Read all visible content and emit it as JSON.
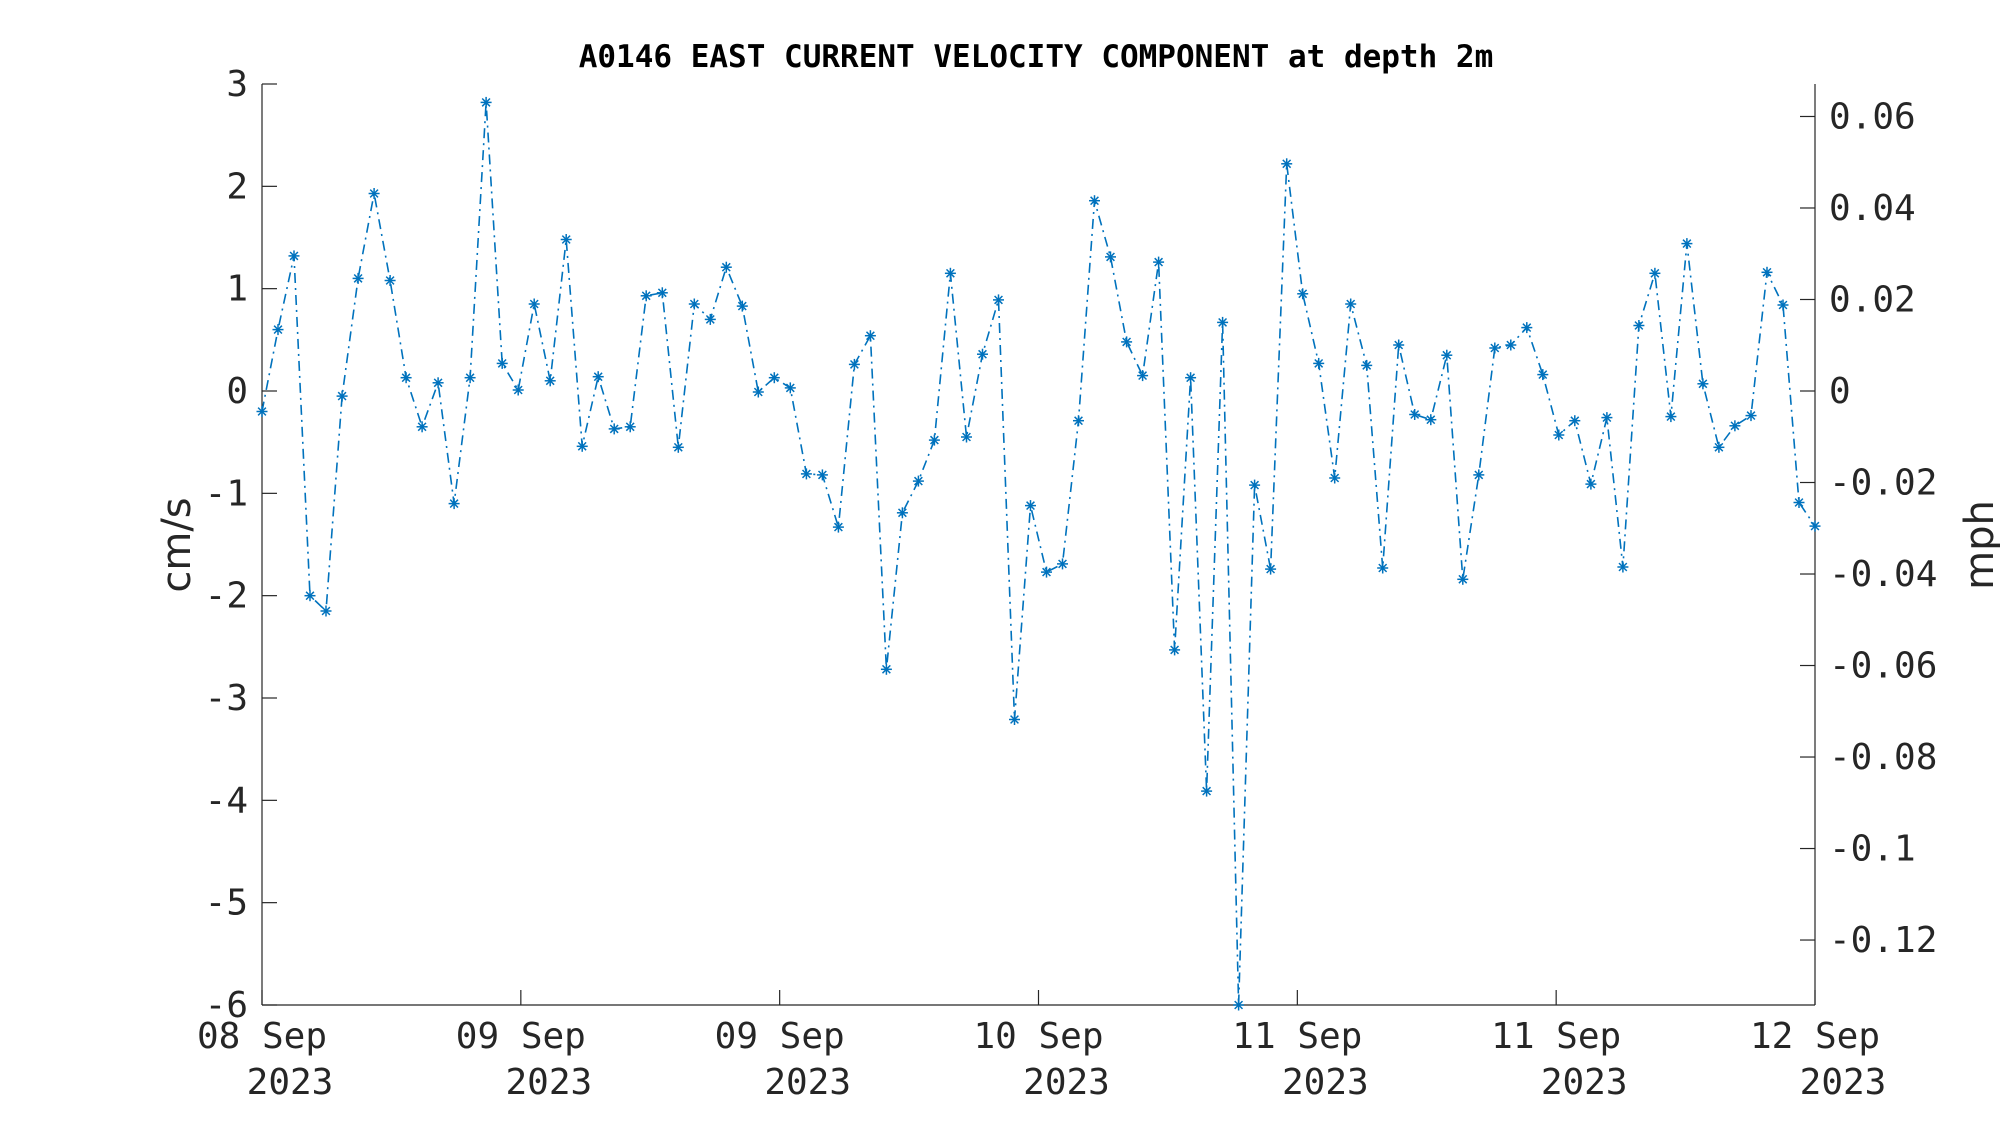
{
  "chart_data": {
    "type": "line",
    "title": "A0146 EAST CURRENT VELOCITY COMPONENT at depth 2m",
    "ylabel": "cm/s",
    "y2label": "mph",
    "ylim": [
      -6,
      3
    ],
    "y2lim": [
      -0.1342,
      0.0671
    ],
    "yticks": [
      "3",
      "2",
      "1",
      "0",
      "-1",
      "-2",
      "-3",
      "-4",
      "-5",
      "-6"
    ],
    "y2ticks": [
      "0.06",
      "0.04",
      "0.02",
      "0",
      "-0.02",
      "-0.04",
      "-0.06",
      "-0.08",
      "-0.1",
      "-0.12"
    ],
    "y2tick_values": [
      0.06,
      0.04,
      0.02,
      0,
      -0.02,
      -0.04,
      -0.06,
      -0.08,
      -0.1,
      -0.12
    ],
    "xticks": [
      {
        "day": "08 Sep",
        "year": "2023"
      },
      {
        "day": "09 Sep",
        "year": "2023"
      },
      {
        "day": "09 Sep",
        "year": "2023"
      },
      {
        "day": "10 Sep",
        "year": "2023"
      },
      {
        "day": "11 Sep",
        "year": "2023"
      },
      {
        "day": "11 Sep",
        "year": "2023"
      },
      {
        "day": "12 Sep",
        "year": "2023"
      }
    ],
    "marker": "asterisk",
    "line_style": "dash-dot",
    "color": "#0072BD",
    "grid": false,
    "series": [
      {
        "values": [
          -0.2,
          0.6,
          1.32,
          -2.0,
          -2.15,
          -0.05,
          1.1,
          1.93,
          1.08,
          0.13,
          -0.35,
          0.08,
          -1.1,
          0.13,
          2.82,
          0.27,
          0.01,
          0.85,
          0.1,
          1.48,
          -0.54,
          0.14,
          -0.37,
          -0.35,
          0.93,
          0.96,
          -0.55,
          0.85,
          0.7,
          1.21,
          0.83,
          -0.01,
          0.13,
          0.03,
          -0.81,
          -0.82,
          -1.33,
          0.26,
          0.54,
          -2.72,
          -1.19,
          -0.88,
          -0.48,
          1.15,
          -0.45,
          0.36,
          0.89,
          -3.21,
          -1.12,
          -1.77,
          -1.69,
          -0.29,
          1.86,
          1.31,
          0.48,
          0.15,
          1.26,
          -2.53,
          0.13,
          -3.91,
          0.67,
          -6.0,
          -0.92,
          -1.74,
          2.22,
          0.95,
          0.27,
          -0.85,
          0.85,
          0.25,
          -1.73,
          0.45,
          -0.23,
          -0.28,
          0.35,
          -1.84,
          -0.82,
          0.42,
          0.45,
          0.62,
          0.16,
          -0.43,
          -0.29,
          -0.91,
          -0.26,
          -1.72,
          0.64,
          1.15,
          -0.25,
          1.44,
          0.07,
          -0.55,
          -0.34,
          -0.24,
          1.16,
          0.84,
          -1.09,
          -1.32
        ]
      }
    ]
  }
}
